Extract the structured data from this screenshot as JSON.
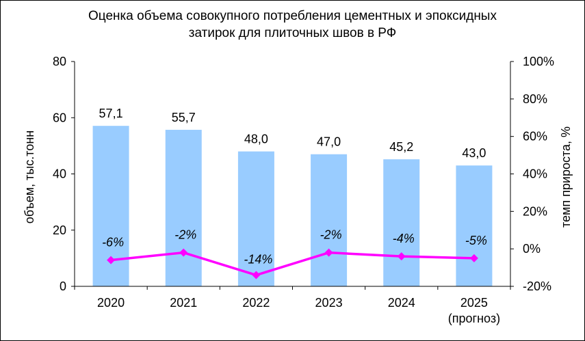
{
  "chart_data": {
    "type": "bar",
    "title": [
      "Оценка объема совокупного потребления цементных и эпоксидных",
      "затирок для плиточных швов в РФ"
    ],
    "categories": [
      "2020",
      "2021",
      "2022",
      "2023",
      "2024",
      "2025"
    ],
    "category_sublabels": [
      "",
      "",
      "",
      "",
      "",
      "(прогноз)"
    ],
    "series": [
      {
        "name": "объем",
        "type": "bar",
        "axis": "left",
        "values": [
          57.1,
          55.7,
          48.0,
          47.0,
          45.2,
          43.0
        ],
        "labels": [
          "57,1",
          "55,7",
          "48,0",
          "47,0",
          "45,2",
          "43,0"
        ],
        "color": "#99ccff"
      },
      {
        "name": "темп прироста",
        "type": "line",
        "axis": "right",
        "values": [
          -6,
          -2,
          -14,
          -2,
          -4,
          -5
        ],
        "labels": [
          "-6%",
          "-2%",
          "-14%",
          "-2%",
          "-4%",
          "-5%"
        ],
        "color": "#ff00ff"
      }
    ],
    "ylabel": "объем, тыс.тонн",
    "ylim": [
      0,
      80
    ],
    "yticks": [
      "0",
      "20",
      "40",
      "60",
      "80"
    ],
    "y2label": "темп прироста, %",
    "y2lim": [
      -20,
      100
    ],
    "y2ticks": [
      "-20%",
      "0%",
      "20%",
      "40%",
      "60%",
      "80%",
      "100%"
    ],
    "grid": false,
    "legend": "none"
  }
}
